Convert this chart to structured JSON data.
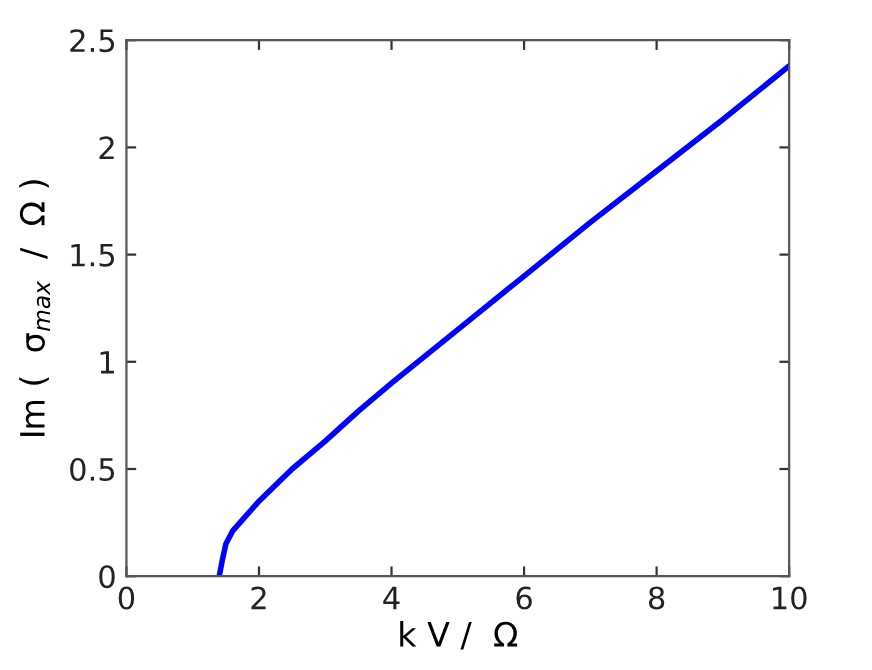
{
  "chart_data": {
    "type": "line",
    "xlabel": "k V /  Ω",
    "ylabel": "Im (  σ$_{max}$  /  Ω )",
    "x": [
      1.4,
      1.45,
      1.5,
      1.6,
      1.8,
      2,
      2.5,
      3,
      3.5,
      4,
      5,
      6,
      7,
      8,
      9,
      10
    ],
    "series": [
      {
        "color": "#0000ff",
        "values": [
          0,
          0.08,
          0.15,
          0.21,
          0.28,
          0.35,
          0.5,
          0.63,
          0.77,
          0.9,
          1.15,
          1.4,
          1.65,
          1.89,
          2.13,
          2.38
        ]
      }
    ],
    "xlim": [
      0,
      10
    ],
    "ylim": [
      0,
      2.5
    ],
    "xticks": [
      0,
      2,
      4,
      6,
      8,
      10
    ],
    "yticks": [
      0,
      0.5,
      1,
      1.5,
      2,
      2.5
    ],
    "grid": false,
    "legend": false,
    "line_style": "solid",
    "marker": "none"
  }
}
